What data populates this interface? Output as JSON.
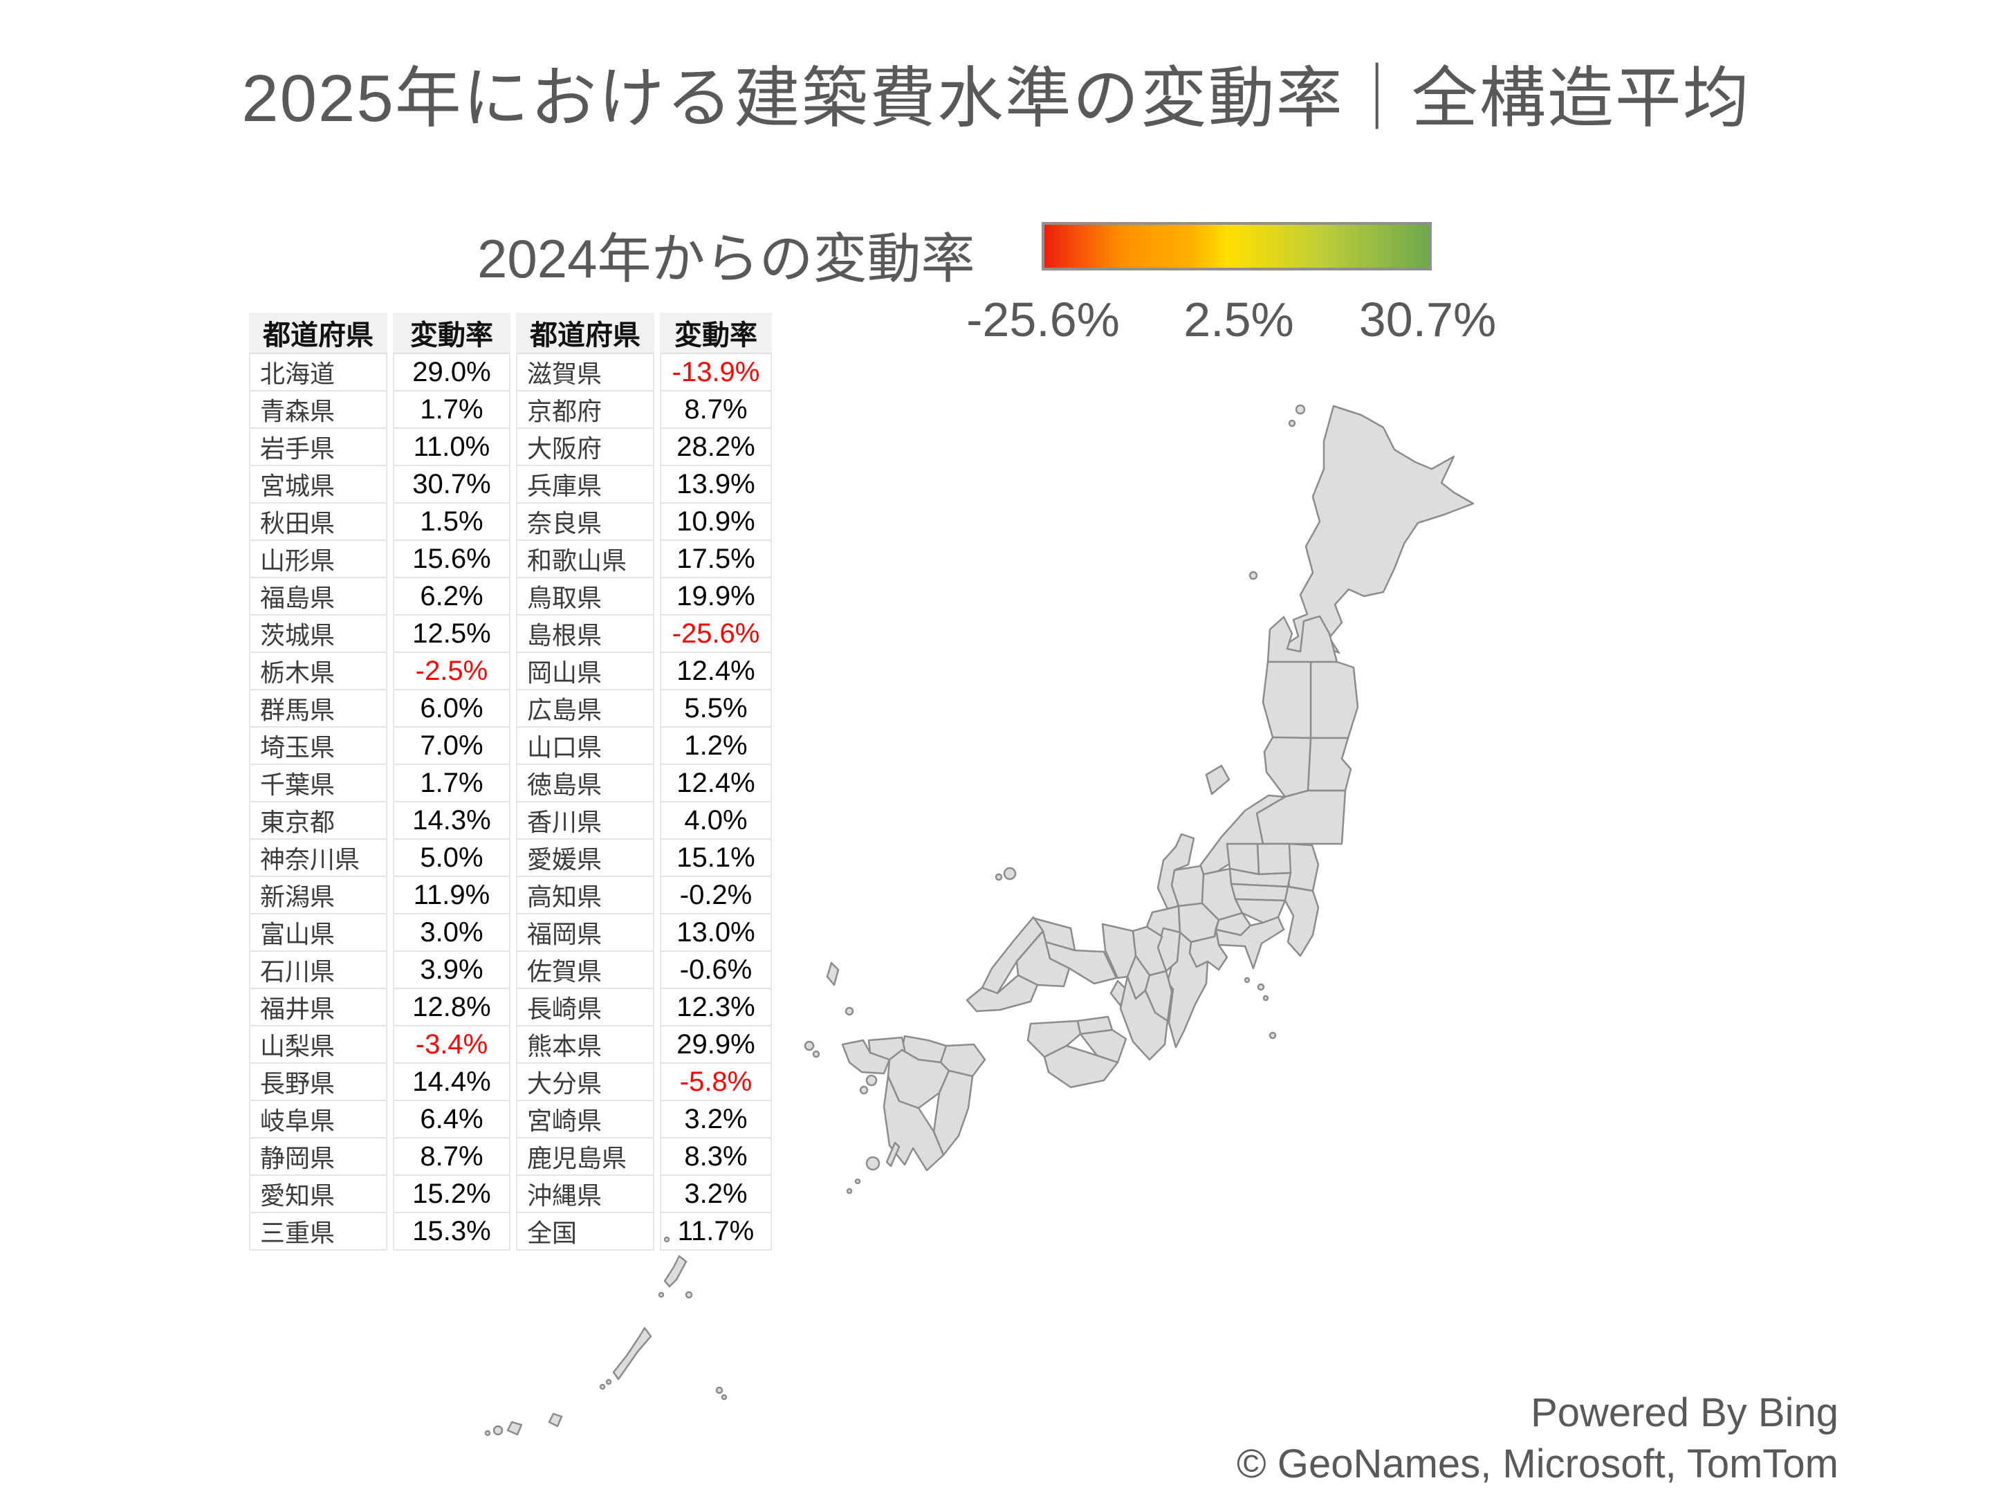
{
  "title": "2025年における建築費水準の変動率｜全構造平均",
  "legend": {
    "label": "2024年からの変動率",
    "min_label": "-25.6%",
    "mid_label": "2.5%",
    "max_label": "30.7%"
  },
  "table": {
    "headers": [
      "都道府県",
      "変動率",
      "都道府県",
      "変動率"
    ],
    "rows": [
      [
        "北海道",
        "29.0%",
        "滋賀県",
        "-13.9%"
      ],
      [
        "青森県",
        "1.7%",
        "京都府",
        "8.7%"
      ],
      [
        "岩手県",
        "11.0%",
        "大阪府",
        "28.2%"
      ],
      [
        "宮城県",
        "30.7%",
        "兵庫県",
        "13.9%"
      ],
      [
        "秋田県",
        "1.5%",
        "奈良県",
        "10.9%"
      ],
      [
        "山形県",
        "15.6%",
        "和歌山県",
        "17.5%"
      ],
      [
        "福島県",
        "6.2%",
        "鳥取県",
        "19.9%"
      ],
      [
        "茨城県",
        "12.5%",
        "島根県",
        "-25.6%"
      ],
      [
        "栃木県",
        "-2.5%",
        "岡山県",
        "12.4%"
      ],
      [
        "群馬県",
        "6.0%",
        "広島県",
        "5.5%"
      ],
      [
        "埼玉県",
        "7.0%",
        "山口県",
        "1.2%"
      ],
      [
        "千葉県",
        "1.7%",
        "徳島県",
        "12.4%"
      ],
      [
        "東京都",
        "14.3%",
        "香川県",
        "4.0%"
      ],
      [
        "神奈川県",
        "5.0%",
        "愛媛県",
        "15.1%"
      ],
      [
        "新潟県",
        "11.9%",
        "高知県",
        "-0.2%"
      ],
      [
        "富山県",
        "3.0%",
        "福岡県",
        "13.0%"
      ],
      [
        "石川県",
        "3.9%",
        "佐賀県",
        "-0.6%"
      ],
      [
        "福井県",
        "12.8%",
        "長崎県",
        "12.3%"
      ],
      [
        "山梨県",
        "-3.4%",
        "熊本県",
        "29.9%"
      ],
      [
        "長野県",
        "14.4%",
        "大分県",
        "-5.8%"
      ],
      [
        "岐阜県",
        "6.4%",
        "宮崎県",
        "3.2%"
      ],
      [
        "静岡県",
        "8.7%",
        "鹿児島県",
        "8.3%"
      ],
      [
        "愛知県",
        "15.2%",
        "沖縄県",
        "3.2%"
      ],
      [
        "三重県",
        "15.3%",
        "全国",
        "11.7%"
      ]
    ],
    "red_values": [
      "-13.9%",
      "-25.6%",
      "-2.5%",
      "-3.4%",
      "-5.8%"
    ]
  },
  "chart_data": {
    "type": "heatmap",
    "subtype": "japan-choropleth",
    "title": "2025年における建築費水準の変動率｜全構造平均",
    "legend_label": "2024年からの変動率",
    "value_range": [
      -25.6,
      30.7
    ],
    "legend_ticks": [
      -25.6,
      2.5,
      30.7
    ],
    "regions": [
      {
        "name": "北海道",
        "value": 29.0
      },
      {
        "name": "青森県",
        "value": 1.7
      },
      {
        "name": "岩手県",
        "value": 11.0
      },
      {
        "name": "宮城県",
        "value": 30.7
      },
      {
        "name": "秋田県",
        "value": 1.5
      },
      {
        "name": "山形県",
        "value": 15.6
      },
      {
        "name": "福島県",
        "value": 6.2
      },
      {
        "name": "茨城県",
        "value": 12.5
      },
      {
        "name": "栃木県",
        "value": -2.5
      },
      {
        "name": "群馬県",
        "value": 6.0
      },
      {
        "name": "埼玉県",
        "value": 7.0
      },
      {
        "name": "千葉県",
        "value": 1.7
      },
      {
        "name": "東京都",
        "value": 14.3
      },
      {
        "name": "神奈川県",
        "value": 5.0
      },
      {
        "name": "新潟県",
        "value": 11.9
      },
      {
        "name": "富山県",
        "value": 3.0
      },
      {
        "name": "石川県",
        "value": 3.9
      },
      {
        "name": "福井県",
        "value": 12.8
      },
      {
        "name": "山梨県",
        "value": -3.4
      },
      {
        "name": "長野県",
        "value": 14.4
      },
      {
        "name": "岐阜県",
        "value": 6.4
      },
      {
        "name": "静岡県",
        "value": 8.7
      },
      {
        "name": "愛知県",
        "value": 15.2
      },
      {
        "name": "三重県",
        "value": 15.3
      },
      {
        "name": "滋賀県",
        "value": -13.9
      },
      {
        "name": "京都府",
        "value": 8.7
      },
      {
        "name": "大阪府",
        "value": 28.2
      },
      {
        "name": "兵庫県",
        "value": 13.9
      },
      {
        "name": "奈良県",
        "value": 10.9
      },
      {
        "name": "和歌山県",
        "value": 17.5
      },
      {
        "name": "鳥取県",
        "value": 19.9
      },
      {
        "name": "島根県",
        "value": -25.6
      },
      {
        "name": "岡山県",
        "value": 12.4
      },
      {
        "name": "広島県",
        "value": 5.5
      },
      {
        "name": "山口県",
        "value": 1.2
      },
      {
        "name": "徳島県",
        "value": 12.4
      },
      {
        "name": "香川県",
        "value": 4.0
      },
      {
        "name": "愛媛県",
        "value": 15.1
      },
      {
        "name": "高知県",
        "value": -0.2
      },
      {
        "name": "福岡県",
        "value": 13.0
      },
      {
        "name": "佐賀県",
        "value": -0.6
      },
      {
        "name": "長崎県",
        "value": 12.3
      },
      {
        "name": "熊本県",
        "value": 29.9
      },
      {
        "name": "大分県",
        "value": -5.8
      },
      {
        "name": "宮崎県",
        "value": 3.2
      },
      {
        "name": "鹿児島県",
        "value": 8.3
      },
      {
        "name": "沖縄県",
        "value": 3.2
      }
    ],
    "national": {
      "name": "全国",
      "value": 11.7
    }
  },
  "map": {
    "color_scale": {
      "min": -25.6,
      "max": 30.7,
      "stops": [
        {
          "t": 0,
          "c": "#f01f0d"
        },
        {
          "t": 0.2,
          "c": "#ff9000"
        },
        {
          "t": 0.38,
          "c": "#ffb000"
        },
        {
          "t": 0.48,
          "c": "#ffe000"
        },
        {
          "t": 0.73,
          "c": "#bccd3a"
        },
        {
          "t": 1,
          "c": "#6fa84c"
        }
      ],
      "border": "#8c8c8c"
    },
    "values": {
      "hokkaido": 29.0,
      "aomori": 1.7,
      "iwate": 11.0,
      "miyagi": 30.7,
      "akita": 1.5,
      "yamagata": 15.6,
      "fukushima": 6.2,
      "ibaraki": 12.5,
      "tochigi": -2.5,
      "gunma": 6.0,
      "saitama": 7.0,
      "chiba": 1.7,
      "tokyo": 14.3,
      "kanagawa": 5.0,
      "niigata": 11.9,
      "toyama": 3.0,
      "ishikawa": 3.9,
      "fukui": 12.8,
      "yamanashi": -3.4,
      "nagano": 14.4,
      "gifu": 6.4,
      "shizuoka": 8.7,
      "aichi": 15.2,
      "mie": 15.3,
      "shiga": -13.9,
      "kyoto": 8.7,
      "osaka": 28.2,
      "hyogo": 13.9,
      "nara": 10.9,
      "wakayama": 17.5,
      "tottori": 19.9,
      "shimane": -25.6,
      "okayama": 12.4,
      "hiroshima": 5.5,
      "yamaguchi": 1.2,
      "tokushima": 12.4,
      "kagawa": 4.0,
      "ehime": 15.1,
      "kochi": -0.2,
      "fukuoka": 13.0,
      "saga": -0.6,
      "nagasaki": 12.3,
      "kumamoto": 29.9,
      "oita": -5.8,
      "miyazaki": 3.2,
      "kagoshima": 8.3,
      "okinawa": 3.2
    }
  },
  "footer": {
    "line1": "Powered By Bing",
    "line2": "© GeoNames, Microsoft, TomTom"
  },
  "colors": {
    "title_text": "#595959",
    "negative_value": "#ff0000",
    "header_bg": "#f1f1f1"
  }
}
